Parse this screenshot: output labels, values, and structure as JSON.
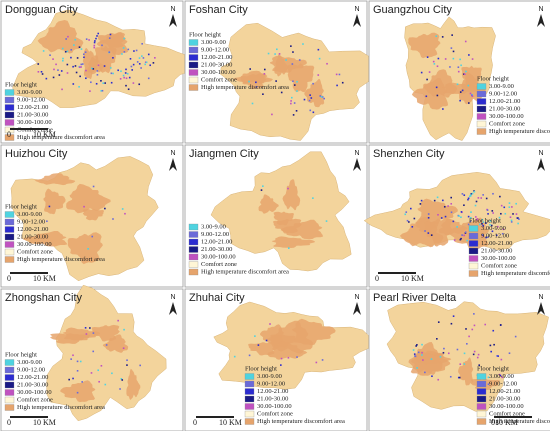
{
  "colors": {
    "3.00-9.00": "#4fd3e0",
    "9.00-12.00": "#6b6ad8",
    "12.00-21.00": "#2c2cd0",
    "21.00-30.00": "#1a1a86",
    "30.00-100.00": "#c052c0",
    "Comfort zone": "#fff6d6",
    "High temperature discomfort area": "#e6a46c"
  },
  "panels": [
    {
      "title": "Dongguan City",
      "legend_title": "Floor height",
      "items": [
        "3.00-9.00",
        "9.00-12.00",
        "12.00-21.00",
        "21.00-30.00",
        "30.00-100.00",
        "Comfort zone",
        "High temperature discomfort area"
      ],
      "scale": [
        "0",
        "10 KM"
      ],
      "north": "N"
    },
    {
      "title": "Foshan City",
      "legend_title": "Floor height",
      "items": [
        "3.00-9.00",
        "9.00-12.00",
        "12.00-21.00",
        "21.00-30.00",
        "30.00-100.00",
        "Comfort zone",
        "High temperature discomfort area"
      ],
      "scale": [],
      "north": "N"
    },
    {
      "title": "Guangzhou City",
      "legend_title": "Floor height",
      "items": [
        "3.00-9.00",
        "9.00-12.00",
        "12.00-21.00",
        "21.00-30.00",
        "30.00-100.00",
        "Comfort zone",
        "High temperature discomfort area"
      ],
      "scale": [],
      "north": "N"
    },
    {
      "title": "Huizhou City",
      "legend_title": "Floor height",
      "items": [
        "3.00-9.00",
        "9.00-12.00",
        "12.00-21.00",
        "21.00-30.00",
        "30.00-100.00",
        "Comfort zone",
        "High temperature discomfort area"
      ],
      "scale": [
        "0",
        "10 KM"
      ],
      "north": "N"
    },
    {
      "title": "Jiangmen City",
      "items": [
        "3.00-9.00",
        "9.00-12.00",
        "12.00-21.00",
        "21.00-30.00",
        "30.00-100.00",
        "Comfort zone",
        "High temperature discomfort area"
      ],
      "scale": [],
      "north": "N"
    },
    {
      "title": "Shenzhen City",
      "legend_title": "Floor height",
      "items": [
        "3.00-9.00",
        "9.00-12.00",
        "12.00-21.00",
        "21.00-30.00",
        "30.00-100.00",
        "Comfort zone",
        "High temperature discomfort area"
      ],
      "scale": [
        "0",
        "10 KM"
      ],
      "north": "N"
    },
    {
      "title": "Zhongshan City",
      "legend_title": "Floor height",
      "items": [
        "3.00-9.00",
        "9.00-12.00",
        "12.00-21.00",
        "21.00-30.00",
        "30.00-100.00",
        "Comfort zone",
        "High temperature discomfort area"
      ],
      "scale": [
        "0",
        "10 KM"
      ],
      "north": "N"
    },
    {
      "title": "Zhuhai City",
      "legend_title": "Floor height",
      "items": [
        "3.00-9.00",
        "9.00-12.00",
        "12.00-21.00",
        "21.00-30.00",
        "30.00-100.00",
        "Comfort zone",
        "High temperature discomfort area"
      ],
      "scale": [
        "0",
        "10 KM"
      ],
      "north": "N"
    },
    {
      "title": "Pearl River Delta",
      "legend_title": "Floor height",
      "items": [
        "3.00-9.00",
        "9.00-12.00",
        "12.00-21.00",
        "21.00-30.00",
        "30.00-100.00",
        "Comfort zone",
        "High temperature discomfort area"
      ],
      "scale": [
        "010 KM"
      ],
      "north": "N"
    }
  ]
}
